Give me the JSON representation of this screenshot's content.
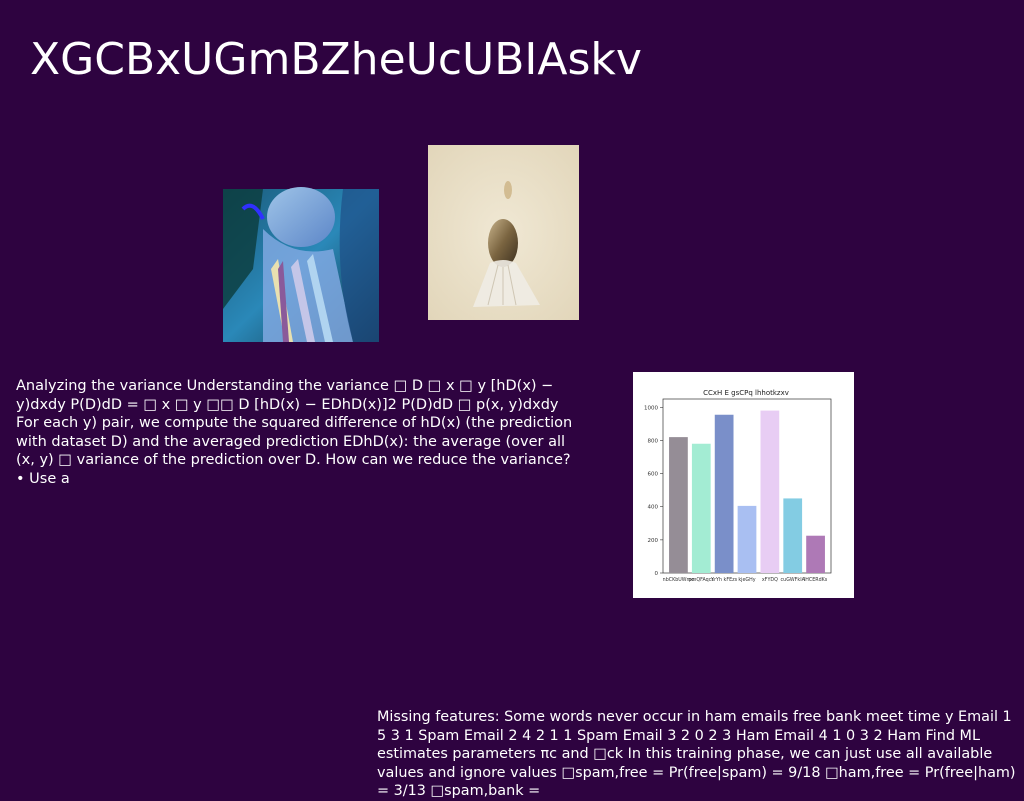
{
  "slide": {
    "title": "XGCBxUGmBZheUcUBIAskv",
    "paragraph_left": "Analyzing the variance Understanding the variance □ D □ x □ y [hD(x) − y)dxdy P(D)dD = □ x □ y □□ D [hD(x) − EDhD(x)]2 P(D)dD □ p(x, y)dxdy For each y) pair, we compute the squared difference of hD(x) (the prediction with dataset D) and the averaged prediction EDhD(x): the average (over all (x, y) □ variance of the prediction over D. How can we reduce the variance? • Use a",
    "paragraph_bottom": "Missing features: Some words never occur in ham emails free bank meet time y Email 1 5 3 1 Spam Email 2 4 2 1 1 Spam Email 3 2 0 2 3 Ham Email 4 1 0 3 2 Ham Find ML estimates parameters πc and □ck In this training phase, we can just use all available values and ignore values □spam,free = Pr(free|spam) = 9/18 □ham,free = Pr(free|ham) = 3/13 □spam,bank ="
  },
  "images": {
    "photo_left": "portrait-photo",
    "photo_right": "egg-sculpture-photo"
  },
  "chart_data": {
    "type": "bar",
    "title": "CCxH E gsCPq lhhotkzxv",
    "categories": [
      "nbCKbUWmo",
      "pmQFAqcs",
      "YrYh kFEzs",
      "kjeGHy",
      "xFYDQ",
      "cuGWFkIA",
      "IHCERdKs"
    ],
    "values": [
      820,
      780,
      955,
      405,
      980,
      450,
      225
    ],
    "colors": [
      "#958d96",
      "#a3ecd3",
      "#7a8fc9",
      "#a9bff2",
      "#e8cdf4",
      "#83cce3",
      "#ae79b6"
    ],
    "ylim": [
      0,
      1050
    ],
    "yticks": [
      0,
      200,
      400,
      600,
      800,
      1000
    ],
    "xlabel": "",
    "ylabel": "",
    "grid": false
  }
}
